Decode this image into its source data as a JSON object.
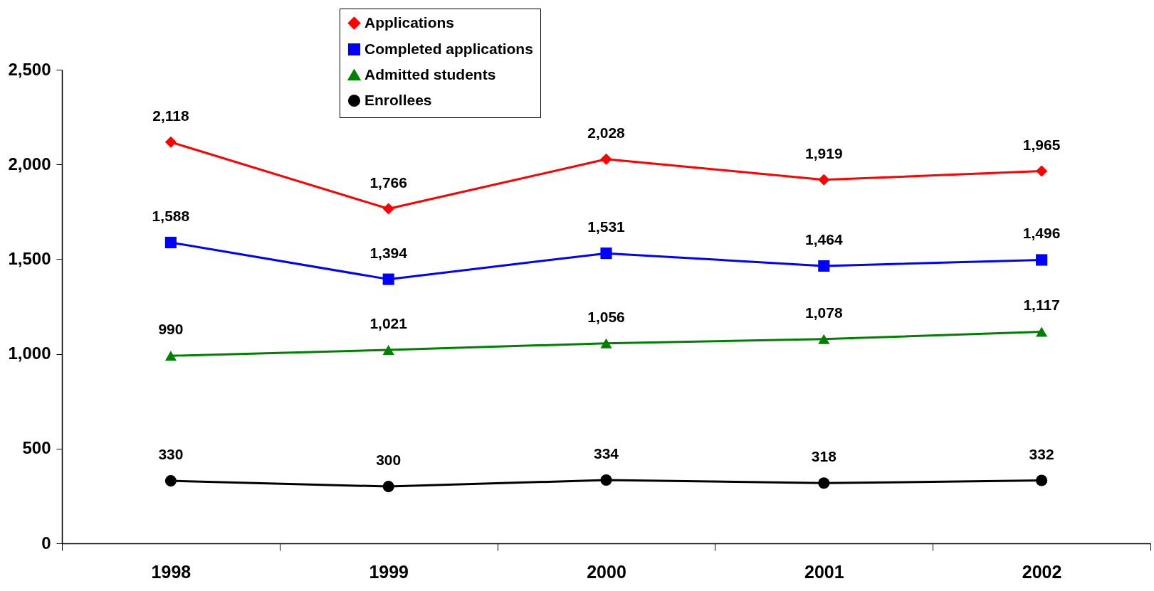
{
  "chart_data": {
    "type": "line",
    "categories": [
      "1998",
      "1999",
      "2000",
      "2001",
      "2002"
    ],
    "series": [
      {
        "name": "Applications",
        "color": "#ff0000",
        "marker": "diamond",
        "values": [
          2118,
          1766,
          2028,
          1919,
          1965
        ],
        "value_labels": [
          "2,118",
          "1,766",
          "2,028",
          "1,919",
          "1,965"
        ]
      },
      {
        "name": "Completed applications",
        "color": "#0000ff",
        "marker": "square",
        "values": [
          1588,
          1394,
          1531,
          1464,
          1496
        ],
        "value_labels": [
          "1,588",
          "1,394",
          "1,531",
          "1,464",
          "1,496"
        ]
      },
      {
        "name": "Admitted students",
        "color": "#008000",
        "marker": "triangle",
        "values": [
          990,
          1021,
          1056,
          1078,
          1117
        ],
        "value_labels": [
          "990",
          "1,021",
          "1,056",
          "1,078",
          "1,117"
        ]
      },
      {
        "name": "Enrollees",
        "color": "#000000",
        "marker": "circle",
        "values": [
          330,
          300,
          334,
          318,
          332
        ],
        "value_labels": [
          "330",
          "300",
          "334",
          "318",
          "332"
        ]
      }
    ],
    "ylim": [
      0,
      2500
    ],
    "yticks": [
      0,
      {
        "value": 500,
        "label": "500"
      },
      {
        "value": 1000,
        "label": "1,000"
      },
      {
        "value": 1500,
        "label": "1,500"
      },
      {
        "value": 2000,
        "label": "2,000"
      },
      {
        "value": 2500,
        "label": "2,500"
      }
    ],
    "grid": false,
    "legend": "top"
  }
}
